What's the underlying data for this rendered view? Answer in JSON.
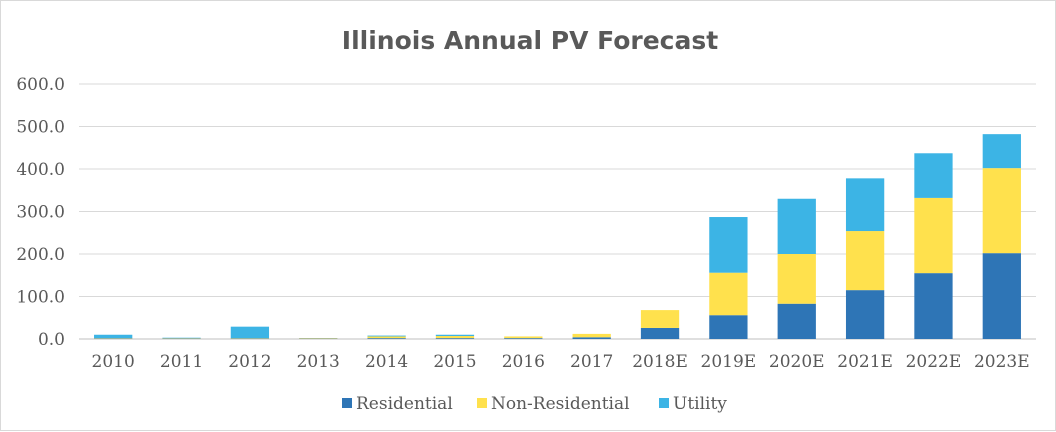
{
  "chart_data": {
    "type": "bar",
    "stacked": true,
    "title": "Illinois Annual PV Forecast",
    "xlabel": "",
    "ylabel": "",
    "categories": [
      "2010",
      "2011",
      "2012",
      "2013",
      "2014",
      "2015",
      "2016",
      "2017",
      "2018E",
      "2019E",
      "2020E",
      "2021E",
      "2022E",
      "2023E"
    ],
    "yticks": [
      "0.0",
      "100.0",
      "200.0",
      "300.0",
      "400.0",
      "500.0",
      "600.0"
    ],
    "ylim": [
      0,
      600
    ],
    "grid": true,
    "legend_position": "bottom",
    "series": [
      {
        "name": "Residential",
        "color": "#2e75b6",
        "values": [
          1,
          1,
          1,
          1,
          2,
          2,
          2,
          4,
          26,
          56,
          83,
          115,
          155,
          202
        ]
      },
      {
        "name": "Non-Residential",
        "color": "#ffe14d",
        "values": [
          1,
          1,
          1,
          1,
          4,
          5,
          4,
          8,
          42,
          100,
          117,
          139,
          177,
          200
        ]
      },
      {
        "name": "Utility",
        "color": "#3cb4e5",
        "values": [
          8,
          1,
          27,
          0,
          2,
          3,
          0,
          0,
          0,
          131,
          130,
          124,
          105,
          80
        ]
      }
    ]
  }
}
